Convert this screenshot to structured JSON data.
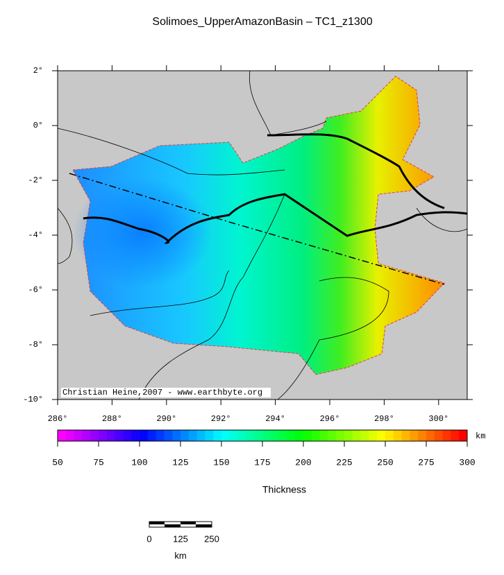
{
  "title": "Solimoes_UpperAmazonBasin – TC1_z1300",
  "map": {
    "lat_labels": [
      "2°",
      "0°",
      "-2°",
      "-4°",
      "-6°",
      "-8°",
      "-10°"
    ],
    "lon_labels": [
      "286°",
      "288°",
      "290°",
      "292°",
      "294°",
      "296°",
      "298°",
      "300°"
    ],
    "credit": "Christian Heine,2007 - www.earthbyte.org"
  },
  "colorbar": {
    "unit": "km",
    "ticks": [
      50,
      75,
      100,
      125,
      150,
      175,
      200,
      225,
      250,
      275,
      300
    ],
    "label": "Thickness"
  },
  "scale_bar": {
    "ticks": [
      "0",
      "125",
      "250"
    ],
    "unit": "km"
  }
}
